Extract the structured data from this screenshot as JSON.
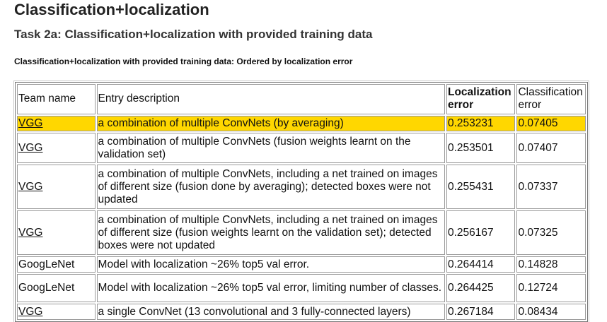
{
  "page": {
    "title": "Classification+localization",
    "subtitle": "Task 2a: Classification+localization with provided training data",
    "table_caption": "Classification+localization with provided training data: Ordered by localization error"
  },
  "table": {
    "headers": {
      "team": "Team name",
      "entry": "Entry description",
      "loc_error": "Localization error",
      "cls_error": "Classification error"
    },
    "rows": [
      {
        "team": "VGG",
        "link": true,
        "highlight": true,
        "entry": "a combination of multiple ConvNets (by averaging)",
        "loc_error": "0.253231",
        "cls_error": "0.07405"
      },
      {
        "team": "VGG",
        "link": true,
        "highlight": false,
        "entry": "a combination of multiple ConvNets (fusion weights learnt on the validation set)",
        "loc_error": "0.253501",
        "cls_error": "0.07407"
      },
      {
        "team": "VGG",
        "link": true,
        "highlight": false,
        "entry": "a combination of multiple ConvNets, including a net trained on images of different size (fusion done by averaging); detected boxes were not updated",
        "loc_error": "0.255431",
        "cls_error": "0.07337"
      },
      {
        "team": "VGG",
        "link": true,
        "highlight": false,
        "entry": "a combination of multiple ConvNets, including a net trained on images of different size (fusion weights learnt on the validation set); detected boxes were not updated",
        "loc_error": "0.256167",
        "cls_error": "0.07325"
      },
      {
        "team": "GoogLeNet",
        "link": false,
        "highlight": false,
        "entry": "Model with localization ~26% top5 val error.",
        "loc_error": "0.264414",
        "cls_error": "0.14828"
      },
      {
        "team": "GoogLeNet",
        "link": false,
        "highlight": false,
        "entry": "Model with localization ~26% top5 val error, limiting number of classes.",
        "loc_error": "0.264425",
        "cls_error": "0.12724"
      },
      {
        "team": "VGG",
        "link": true,
        "highlight": false,
        "entry": "a single ConvNet (13 convolutional and 3 fully-connected layers)",
        "loc_error": "0.267184",
        "cls_error": "0.08434"
      }
    ]
  }
}
